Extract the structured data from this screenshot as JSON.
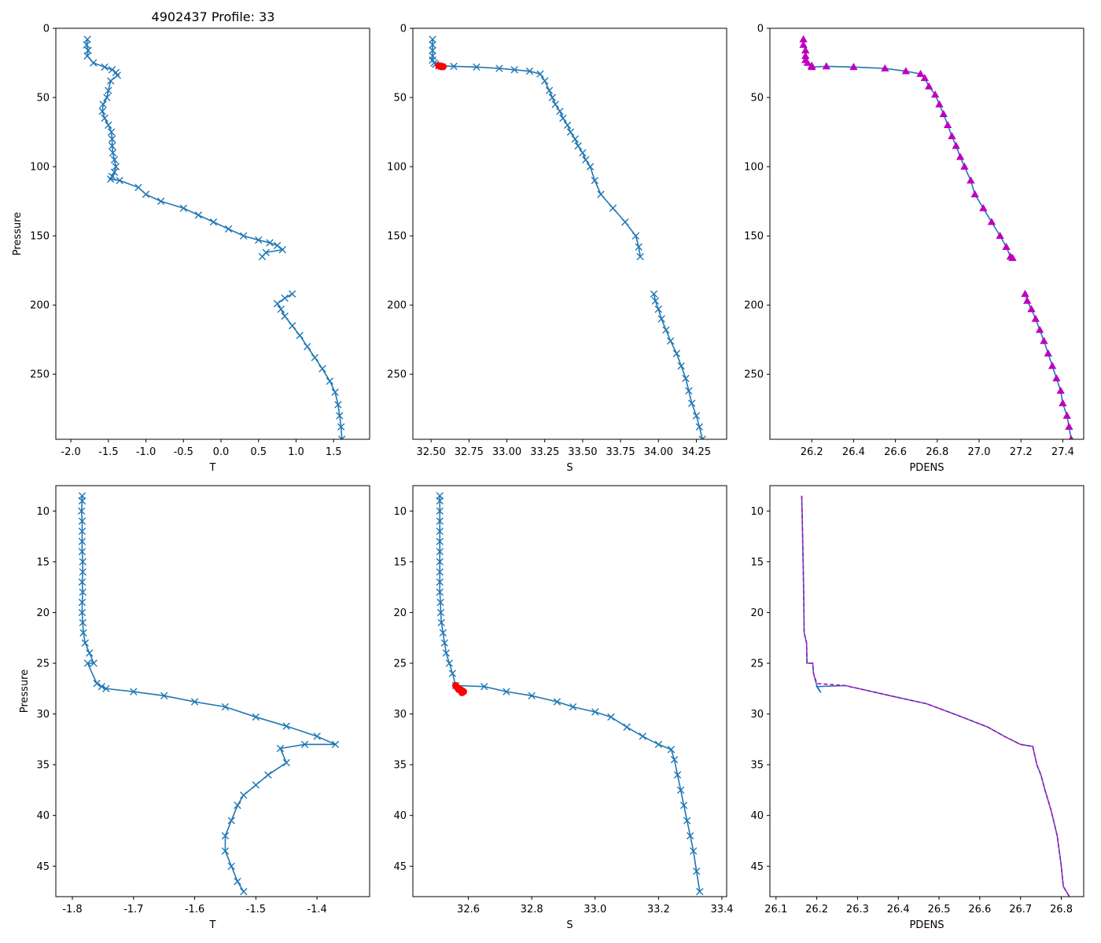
{
  "title": "4902437 Profile: 33",
  "colors": {
    "line": "#1f77b4",
    "flag": "#ff0000",
    "density": "#bf00bf"
  },
  "chart_data": [
    {
      "panel": "top-left",
      "type": "line",
      "marker": "x",
      "xlabel": "T",
      "ylabel": "Pressure",
      "xlim": [
        -2.2,
        1.98
      ],
      "ylim": [
        297,
        0
      ],
      "xticks": [
        "-2.0",
        "-1.5",
        "-1.0",
        "-0.5",
        "0.0",
        "0.5",
        "1.0",
        "1.5"
      ],
      "yticks": [
        "0",
        "50",
        "100",
        "150",
        "200",
        "250"
      ],
      "series": [
        {
          "name": "T",
          "x": [
            -1.78,
            -1.79,
            -1.77,
            -1.78,
            -1.7,
            -1.55,
            -1.45,
            -1.4,
            -1.38,
            -1.47,
            -1.5,
            -1.52,
            -1.57,
            -1.58,
            -1.55,
            -1.5,
            -1.46,
            -1.45,
            -1.45,
            -1.44,
            -1.42,
            -1.4,
            -1.42,
            -1.45,
            -1.47,
            -1.35,
            -1.1,
            -1.0,
            -0.8,
            -0.5,
            -0.3,
            -0.1,
            0.1,
            0.3,
            0.5,
            0.65,
            0.75,
            0.82,
            0.6,
            0.55
          ],
          "y": [
            8,
            12,
            16,
            20,
            25,
            28,
            30,
            32,
            34,
            38,
            45,
            50,
            55,
            60,
            65,
            70,
            75,
            80,
            85,
            90,
            95,
            100,
            104,
            107,
            109,
            110,
            115,
            120,
            125,
            130,
            135,
            140,
            145,
            150,
            153,
            155,
            157,
            160,
            162,
            165
          ]
        },
        {
          "name": "T",
          "x": [
            0.95,
            0.85,
            0.75,
            0.8,
            0.85,
            0.95,
            1.05,
            1.15,
            1.25,
            1.35,
            1.45,
            1.52,
            1.56,
            1.58,
            1.6,
            1.61
          ],
          "y": [
            192,
            195,
            199,
            203,
            208,
            215,
            222,
            230,
            238,
            246,
            255,
            263,
            272,
            280,
            288,
            297
          ]
        }
      ]
    },
    {
      "panel": "top-middle",
      "type": "line",
      "marker": "x",
      "xlabel": "S",
      "ylabel": "",
      "xlim": [
        32.38,
        34.45
      ],
      "ylim": [
        297,
        0
      ],
      "xticks": [
        "32.50",
        "32.75",
        "33.00",
        "33.25",
        "33.50",
        "33.75",
        "34.00",
        "34.25"
      ],
      "yticks": [
        "0",
        "50",
        "100",
        "150",
        "200",
        "250"
      ],
      "series": [
        {
          "name": "S",
          "x": [
            32.51,
            32.51,
            32.51,
            32.51,
            32.51,
            32.52,
            32.53,
            32.55,
            32.65,
            32.8,
            32.95,
            33.05,
            33.15,
            33.22,
            33.25,
            33.28,
            33.3,
            33.32,
            33.35,
            33.37,
            33.4,
            33.42,
            33.45,
            33.47,
            33.5,
            33.52,
            33.55,
            33.58,
            33.62,
            33.7,
            33.78,
            33.85,
            33.87,
            33.88
          ],
          "y": [
            8,
            12,
            16,
            20,
            23,
            25,
            26,
            27,
            27.5,
            28,
            29,
            30,
            31,
            33,
            38,
            45,
            50,
            55,
            60,
            65,
            70,
            75,
            80,
            85,
            90,
            95,
            100,
            110,
            120,
            130,
            140,
            150,
            158,
            165
          ]
        },
        {
          "name": "S",
          "x": [
            33.97,
            33.98,
            34.0,
            34.02,
            34.05,
            34.08,
            34.12,
            34.15,
            34.18,
            34.2,
            34.22,
            34.25,
            34.27,
            34.29
          ],
          "y": [
            192,
            197,
            203,
            210,
            218,
            226,
            235,
            244,
            253,
            262,
            271,
            280,
            288,
            297
          ]
        }
      ],
      "flagged": {
        "name": "flagged",
        "x": [
          32.55,
          32.56,
          32.57,
          32.58,
          32.57,
          32.56
        ],
        "y": [
          27.1,
          27.4,
          27.6,
          27.7,
          27.8,
          27.5
        ]
      }
    },
    {
      "panel": "top-right",
      "type": "line",
      "marker": "triangle",
      "xlabel": "PDENS",
      "ylabel": "",
      "xlim": [
        26.0,
        27.5
      ],
      "ylim": [
        297,
        0
      ],
      "xticks": [
        "26.2",
        "26.4",
        "26.6",
        "26.8",
        "27.0",
        "27.2",
        "27.4"
      ],
      "yticks": [
        "0",
        "50",
        "100",
        "150",
        "200",
        "250"
      ],
      "series": [
        {
          "name": "PDENS",
          "x": [
            26.16,
            26.16,
            26.17,
            26.17,
            26.17,
            26.18,
            26.2,
            26.2,
            26.27,
            26.4,
            26.55,
            26.65,
            26.72,
            26.74,
            26.76,
            26.79,
            26.81,
            26.83,
            26.85,
            26.87,
            26.89,
            26.91,
            26.93,
            26.96,
            26.98,
            27.02,
            27.06,
            27.1,
            27.13,
            27.15,
            27.16
          ],
          "y": [
            8,
            12,
            16,
            20,
            23,
            25,
            27,
            28,
            27.5,
            28,
            29,
            31,
            33,
            36,
            42,
            48,
            55,
            62,
            70,
            78,
            85,
            93,
            100,
            110,
            120,
            130,
            140,
            150,
            158,
            165,
            166
          ]
        },
        {
          "name": "PDENS",
          "x": [
            27.22,
            27.23,
            27.25,
            27.27,
            27.29,
            27.31,
            27.33,
            27.35,
            27.37,
            27.39,
            27.4,
            27.42,
            27.43,
            27.44
          ],
          "y": [
            192,
            197,
            203,
            210,
            218,
            226,
            235,
            244,
            253,
            262,
            271,
            280,
            288,
            297
          ]
        }
      ]
    },
    {
      "panel": "bottom-left",
      "type": "line",
      "marker": "x",
      "xlabel": "T",
      "ylabel": "Pressure",
      "xlim": [
        -1.827,
        -1.314
      ],
      "ylim": [
        48,
        7.5
      ],
      "xticks": [
        "-1.8",
        "-1.7",
        "-1.6",
        "-1.5",
        "-1.4"
      ],
      "yticks": [
        "10",
        "15",
        "20",
        "25",
        "30",
        "35",
        "40",
        "45"
      ],
      "series": [
        {
          "name": "T",
          "x": [
            -1.784,
            -1.784,
            -1.785,
            -1.784,
            -1.784,
            -1.784,
            -1.784,
            -1.783,
            -1.783,
            -1.784,
            -1.783,
            -1.784,
            -1.784,
            -1.783,
            -1.782,
            -1.779,
            -1.772,
            -1.765,
            -1.775,
            -1.76,
            -1.752,
            -1.745,
            -1.7,
            -1.65,
            -1.6,
            -1.55,
            -1.5,
            -1.45,
            -1.4,
            -1.37,
            -1.42,
            -1.46,
            -1.45,
            -1.48,
            -1.5,
            -1.52,
            -1.53,
            -1.54,
            -1.55,
            -1.55,
            -1.54,
            -1.53,
            -1.52
          ],
          "y": [
            8.5,
            9,
            10,
            11,
            12,
            13,
            14,
            15,
            16,
            17,
            18,
            19,
            20,
            21,
            22,
            23,
            24,
            25,
            25,
            27,
            27.3,
            27.5,
            27.8,
            28.2,
            28.8,
            29.3,
            30.3,
            31.2,
            32.2,
            33.0,
            33.0,
            33.4,
            34.8,
            36.0,
            37.0,
            38.0,
            39.0,
            40.5,
            42.0,
            43.5,
            45.0,
            46.5,
            47.5
          ]
        }
      ]
    },
    {
      "panel": "bottom-middle",
      "type": "line",
      "marker": "x",
      "xlabel": "S",
      "ylabel": "",
      "xlim": [
        32.425,
        33.415
      ],
      "ylim": [
        48,
        7.5
      ],
      "xticks": [
        "32.6",
        "32.8",
        "33.0",
        "33.2",
        "33.4"
      ],
      "yticks": [
        "10",
        "15",
        "20",
        "25",
        "30",
        "35",
        "40",
        "45"
      ],
      "series": [
        {
          "name": "S",
          "x": [
            32.51,
            32.51,
            32.51,
            32.51,
            32.51,
            32.51,
            32.51,
            32.51,
            32.51,
            32.51,
            32.51,
            32.512,
            32.513,
            32.515,
            32.52,
            32.525,
            32.53,
            32.54,
            32.55,
            32.56,
            32.65,
            32.72,
            32.8,
            32.88,
            32.93,
            33.0,
            33.05,
            33.1,
            33.15,
            33.2,
            33.24,
            33.25,
            33.26,
            33.27,
            33.28,
            33.29,
            33.3,
            33.31,
            33.32,
            33.33
          ],
          "y": [
            8.5,
            9,
            10,
            11,
            12,
            13,
            14,
            15,
            16,
            17,
            18,
            19,
            20,
            21,
            22,
            23,
            24,
            25,
            26,
            27.2,
            27.3,
            27.8,
            28.2,
            28.8,
            29.3,
            29.8,
            30.3,
            31.3,
            32.2,
            33.0,
            33.5,
            34.5,
            36.0,
            37.5,
            39.0,
            40.5,
            42.0,
            43.5,
            45.5,
            47.5
          ]
        }
      ],
      "flagged": {
        "name": "flagged",
        "x": [
          32.56,
          32.565,
          32.57,
          32.575,
          32.58,
          32.585,
          32.58,
          32.57
        ],
        "y": [
          27.2,
          27.4,
          27.5,
          27.6,
          27.7,
          27.8,
          27.9,
          27.6
        ]
      }
    },
    {
      "panel": "bottom-right",
      "type": "line",
      "marker": "none",
      "xlabel": "PDENS",
      "ylabel": "",
      "xlim": [
        26.085,
        26.855
      ],
      "ylim": [
        48,
        7.5
      ],
      "xticks": [
        "26.1",
        "26.2",
        "26.3",
        "26.4",
        "26.5",
        "26.6",
        "26.7",
        "26.8"
      ],
      "yticks": [
        "10",
        "15",
        "20",
        "25",
        "30",
        "35",
        "40",
        "45"
      ],
      "series": [
        {
          "name": "PDENS",
          "x": [
            26.163,
            26.164,
            26.165,
            26.166,
            26.167,
            26.168,
            26.169,
            26.175,
            26.176,
            26.19,
            26.192,
            26.2,
            26.21,
            26.2,
            26.27,
            26.38,
            26.47,
            26.55,
            26.62,
            26.66,
            26.7,
            26.73,
            26.74,
            26.75,
            26.76,
            26.775,
            26.79,
            26.8,
            26.805,
            26.82
          ],
          "y": [
            8.5,
            10,
            12,
            14,
            16,
            18,
            22,
            23,
            25,
            25,
            26,
            27.2,
            27.9,
            27.3,
            27.2,
            28.2,
            29.0,
            30.2,
            31.3,
            32.2,
            33.0,
            33.2,
            35,
            36,
            37.5,
            39.5,
            42,
            45,
            47,
            48
          ]
        }
      ],
      "overlay": {
        "name": "PDENS-dashed",
        "x": [
          26.163,
          26.165,
          26.167,
          26.169,
          26.175,
          26.176,
          26.19,
          26.192,
          26.2,
          26.27,
          26.38,
          26.47,
          26.55,
          26.62,
          26.66,
          26.7,
          26.73,
          26.74,
          26.75,
          26.76,
          26.775,
          26.79,
          26.8,
          26.805,
          26.82
        ],
        "y": [
          8.5,
          12,
          16,
          22,
          23,
          25,
          25,
          26,
          27.0,
          27.2,
          28.2,
          29.0,
          30.2,
          31.3,
          32.2,
          33.0,
          33.2,
          35,
          36,
          37.5,
          39.5,
          42,
          45,
          47,
          48
        ]
      }
    }
  ]
}
